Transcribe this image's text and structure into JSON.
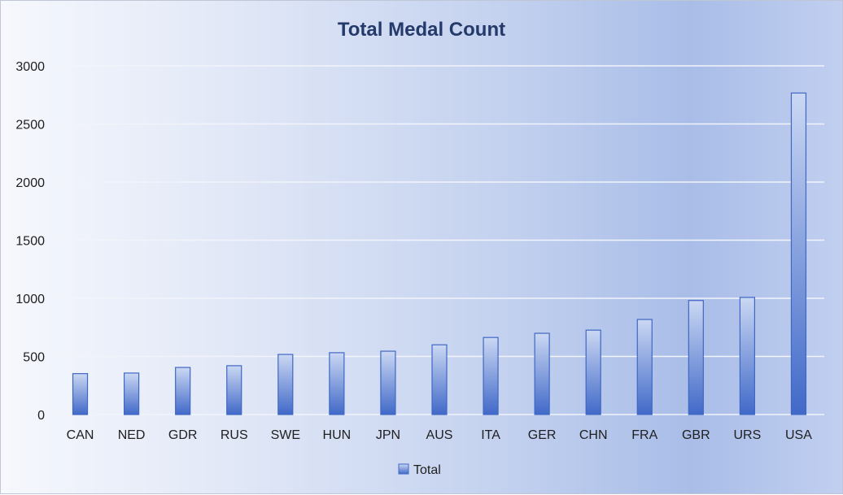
{
  "chart_data": {
    "type": "bar",
    "title": "Total Medal Count",
    "categories": [
      "CAN",
      "NED",
      "GDR",
      "RUS",
      "SWE",
      "HUN",
      "JPN",
      "AUS",
      "ITA",
      "GER",
      "CHN",
      "FRA",
      "GBR",
      "URS",
      "USA"
    ],
    "series": [
      {
        "name": "Total",
        "values": [
          352,
          357,
          405,
          420,
          517,
          532,
          545,
          600,
          663,
          699,
          726,
          818,
          981,
          1008,
          2766
        ]
      }
    ],
    "ylim": [
      0,
      3000
    ],
    "yticks": [
      0,
      500,
      1000,
      1500,
      2000,
      2500,
      3000
    ],
    "grid": true,
    "legend_position": "bottom",
    "colors": {
      "bar_top": "#cbd8f3",
      "bar_bottom": "#4169c8",
      "bar_stroke": "#3f67c4",
      "grid": "#f2f4fa",
      "title": "#243a6b"
    }
  }
}
